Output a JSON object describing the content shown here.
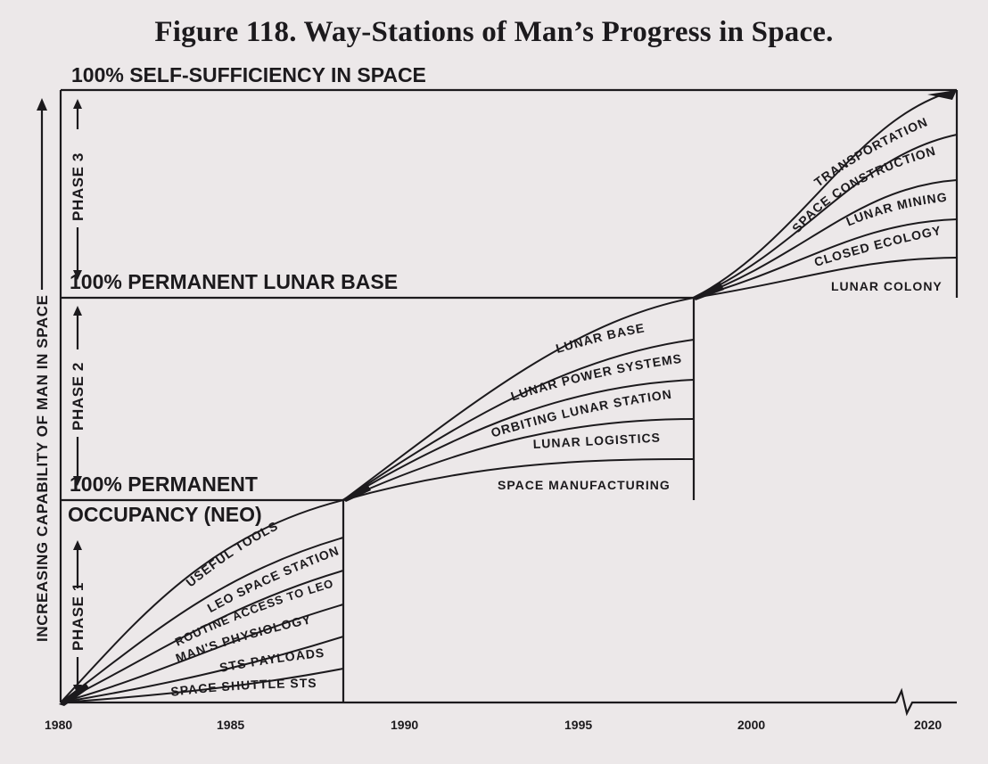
{
  "title": "Figure 118.  Way-Stations of Man’s Progress in Space.",
  "levels": {
    "self_sufficiency": "100% SELF-SUFFICIENCY IN SPACE",
    "lunar_base": "100% PERMANENT LUNAR BASE",
    "permanent": "100% PERMANENT",
    "occupancy": "OCCUPANCY (NEO)"
  },
  "vertical_axis": {
    "label": "INCREASING CAPABILITY OF MAN IN SPACE",
    "phases": [
      "PHASE 1",
      "PHASE 2",
      "PHASE 3"
    ]
  },
  "x_axis": {
    "ticks": [
      "1980",
      "1985",
      "1990",
      "1995",
      "2000",
      "2020"
    ]
  },
  "phase1_curves": [
    "USEFUL TOOLS",
    "LEO SPACE STATION",
    "ROUTINE ACCESS TO LEO",
    "MAN'S PHYSIOLOGY",
    "STS PAYLOADS",
    "SPACE SHUTTLE STS"
  ],
  "phase2_curves": [
    "LUNAR BASE",
    "LUNAR POWER SYSTEMS",
    "ORBITING LUNAR STATION",
    "LUNAR LOGISTICS",
    "SPACE MANUFACTURING"
  ],
  "phase3_curves": [
    "TRANSPORTATION",
    "SPACE CONSTRUCTION",
    "LUNAR MINING",
    "CLOSED ECOLOGY",
    "LUNAR COLONY"
  ]
}
